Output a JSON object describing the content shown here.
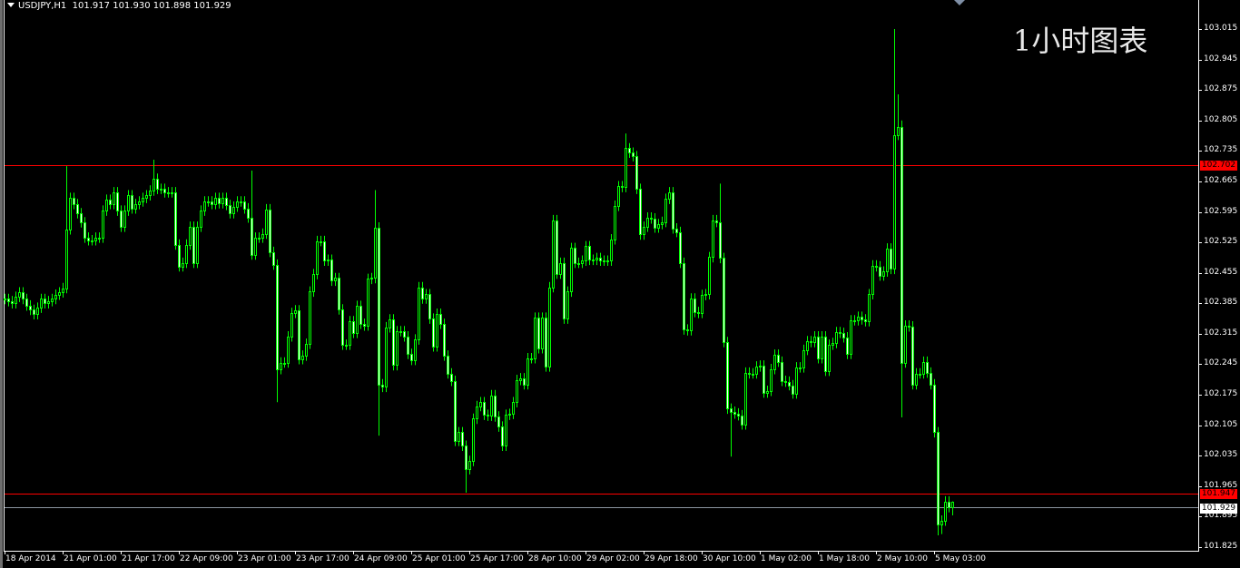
{
  "header": {
    "symbol_timeframe": "USDJPY,H1",
    "open": "101.917",
    "high": "101.930",
    "low": "101.898",
    "close": "101.929"
  },
  "overlay_title": "1小时图表",
  "colors": {
    "background": "#000000",
    "candle": "#00ff00",
    "bear_fill": "#ffffff",
    "bull_fill": "#000000",
    "level_line": "#ff0000",
    "bid_line": "#8c96a0",
    "axis": "#ffffff"
  },
  "price_axis": [
    "103.015",
    "102.945",
    "102.875",
    "102.805",
    "102.735",
    "102.665",
    "102.595",
    "102.525",
    "102.455",
    "102.385",
    "102.315",
    "102.245",
    "102.175",
    "102.105",
    "102.035",
    "101.965",
    "101.895",
    "101.825"
  ],
  "time_axis": [
    "18 Apr 2014",
    "21 Apr 01:00",
    "21 Apr 17:00",
    "22 Apr 09:00",
    "23 Apr 01:00",
    "23 Apr 17:00",
    "24 Apr 09:00",
    "25 Apr 01:00",
    "25 Apr 17:00",
    "28 Apr 10:00",
    "29 Apr 02:00",
    "29 Apr 18:00",
    "30 Apr 10:00",
    "1 May 02:00",
    "1 May 18:00",
    "2 May 10:00",
    "5 May 03:00"
  ],
  "levels": [
    {
      "price": 102.702,
      "label": "102.702",
      "kind": "resistance"
    },
    {
      "price": 101.947,
      "label": "101.947",
      "kind": "support"
    }
  ],
  "bid": {
    "price": 101.929,
    "label": "101.929"
  },
  "chart_data": {
    "type": "candlestick",
    "symbol": "USDJPY",
    "timeframe": "H1",
    "ylim": [
      101.825,
      103.015
    ],
    "grid": false,
    "close": [
      102.395,
      102.39,
      102.385,
      102.4,
      102.41,
      102.395,
      102.38,
      102.37,
      102.36,
      102.375,
      102.395,
      102.385,
      102.39,
      102.395,
      102.405,
      102.41,
      102.42,
      102.555,
      102.627,
      102.613,
      102.592,
      102.571,
      102.536,
      102.53,
      102.53,
      102.536,
      102.536,
      102.598,
      102.623,
      102.613,
      102.64,
      102.598,
      102.561,
      102.598,
      102.633,
      102.603,
      102.613,
      102.619,
      102.627,
      102.633,
      102.644,
      102.671,
      102.648,
      102.648,
      102.64,
      102.64,
      102.64,
      102.52,
      102.47,
      102.478,
      102.52,
      102.561,
      102.478,
      102.561,
      102.598,
      102.619,
      102.619,
      102.613,
      102.627,
      102.615,
      102.627,
      102.611,
      102.592,
      102.607,
      102.619,
      102.619,
      102.603,
      102.582,
      102.497,
      102.536,
      102.536,
      102.545,
      102.601,
      102.503,
      102.474,
      102.234,
      102.249,
      102.249,
      102.309,
      102.363,
      102.369,
      102.257,
      102.265,
      102.292,
      102.412,
      102.452,
      102.528,
      102.528,
      102.483,
      102.485,
      102.437,
      102.443,
      102.371,
      102.29,
      102.29,
      102.344,
      102.317,
      102.379,
      102.338,
      102.334,
      102.441,
      102.443,
      102.559,
      102.199,
      102.193,
      102.33,
      102.348,
      102.243,
      102.321,
      102.321,
      102.309,
      102.269,
      102.255,
      102.302,
      102.422,
      102.396,
      102.406,
      102.35,
      102.286,
      102.361,
      102.338,
      102.265,
      102.224,
      102.207,
      102.069,
      102.089,
      102.058,
      102.004,
      102.023,
      102.12,
      102.149,
      102.158,
      102.129,
      102.127,
      102.174,
      102.125,
      102.102,
      102.058,
      102.129,
      102.131,
      102.158,
      102.209,
      102.213,
      102.199,
      102.259,
      102.259,
      102.352,
      102.282,
      102.352,
      102.24,
      102.422,
      102.576,
      102.453,
      102.478,
      102.35,
      102.412,
      102.512,
      102.478,
      102.478,
      102.483,
      102.516,
      102.485,
      102.485,
      102.489,
      102.483,
      102.483,
      102.483,
      102.532,
      102.609,
      102.654,
      102.652,
      102.741,
      102.731,
      102.723,
      102.648,
      102.543,
      102.561,
      102.582,
      102.58,
      102.559,
      102.567,
      102.572,
      102.625,
      102.64,
      102.557,
      102.549,
      102.478,
      102.325,
      102.323,
      102.396,
      102.365,
      102.363,
      102.404,
      102.406,
      102.491,
      102.576,
      102.572,
      102.489,
      102.296,
      102.143,
      102.136,
      102.132,
      102.128,
      102.107,
      102.226,
      102.224,
      102.224,
      102.24,
      102.242,
      102.18,
      102.184,
      102.234,
      102.267,
      102.251,
      102.207,
      102.205,
      102.197,
      102.178,
      102.238,
      102.238,
      102.278,
      102.298,
      102.296,
      102.309,
      102.259,
      102.309,
      102.23,
      102.29,
      102.294,
      102.319,
      102.317,
      102.307,
      102.269,
      102.346,
      102.346,
      102.354,
      102.348,
      102.344,
      102.406,
      102.472,
      102.47,
      102.449,
      102.458,
      102.511,
      102.464,
      102.772,
      102.789,
      102.249,
      102.334,
      102.332,
      102.199,
      102.224,
      102.224,
      102.251,
      102.226,
      102.199,
      102.089,
      101.878,
      101.886,
      101.93,
      101.917,
      101.929
    ],
    "notable_extremes": [
      {
        "index": 17,
        "high": 102.7
      },
      {
        "index": 41,
        "high": 102.715
      },
      {
        "index": 68,
        "high": 102.69
      },
      {
        "index": 75,
        "low": 102.158
      },
      {
        "index": 102,
        "high": 102.645
      },
      {
        "index": 103,
        "low": 102.081
      },
      {
        "index": 127,
        "low": 101.95
      },
      {
        "index": 171,
        "high": 102.775
      },
      {
        "index": 197,
        "high": 102.66
      },
      {
        "index": 200,
        "low": 102.033
      },
      {
        "index": 245,
        "high": 103.015
      },
      {
        "index": 246,
        "high": 102.865
      },
      {
        "index": 247,
        "high": 102.805,
        "low": 102.123
      },
      {
        "index": 257,
        "low": 101.852
      },
      {
        "index": 258,
        "low": 101.855
      },
      {
        "index": 261,
        "high": 101.93,
        "low": 101.898
      }
    ]
  }
}
